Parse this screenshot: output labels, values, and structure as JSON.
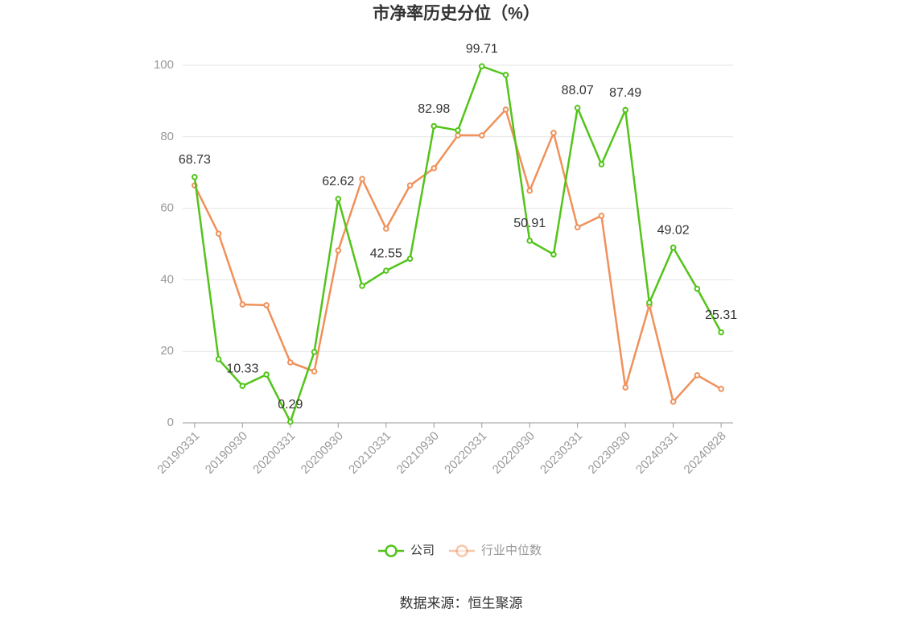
{
  "chart_data": {
    "type": "line",
    "title": "市净率历史分位（%）",
    "categories": [
      "20190331",
      null,
      "20190930",
      null,
      "20200331",
      null,
      "20200930",
      null,
      "20210331",
      null,
      "20210930",
      null,
      "20220331",
      null,
      "20220930",
      null,
      "20230331",
      null,
      "20230930",
      null,
      "20240331",
      null,
      "20240828"
    ],
    "series": [
      {
        "name": "公司",
        "color": "#52c41a",
        "values": [
          68.73,
          17.8,
          10.33,
          13.5,
          0.29,
          19.8,
          62.62,
          38.3,
          42.55,
          45.9,
          82.98,
          81.8,
          99.71,
          97.3,
          50.91,
          47.1,
          88.07,
          72.3,
          87.49,
          33.6,
          49.02,
          37.5,
          25.31
        ]
      },
      {
        "name": "行业中位数",
        "color": "#f0905a",
        "values": [
          66.4,
          52.9,
          33.1,
          32.9,
          16.9,
          14.4,
          48.2,
          68.2,
          54.3,
          66.4,
          71.2,
          80.4,
          80.4,
          87.6,
          64.9,
          81.1,
          54.7,
          57.9,
          9.9,
          32.9,
          5.9,
          13.3,
          9.5
        ]
      }
    ],
    "ylim": [
      0,
      100
    ],
    "yticks": [
      0,
      20,
      40,
      60,
      80,
      100
    ],
    "grid": true,
    "legend": "bottom",
    "source": "数据来源：恒生聚源"
  }
}
